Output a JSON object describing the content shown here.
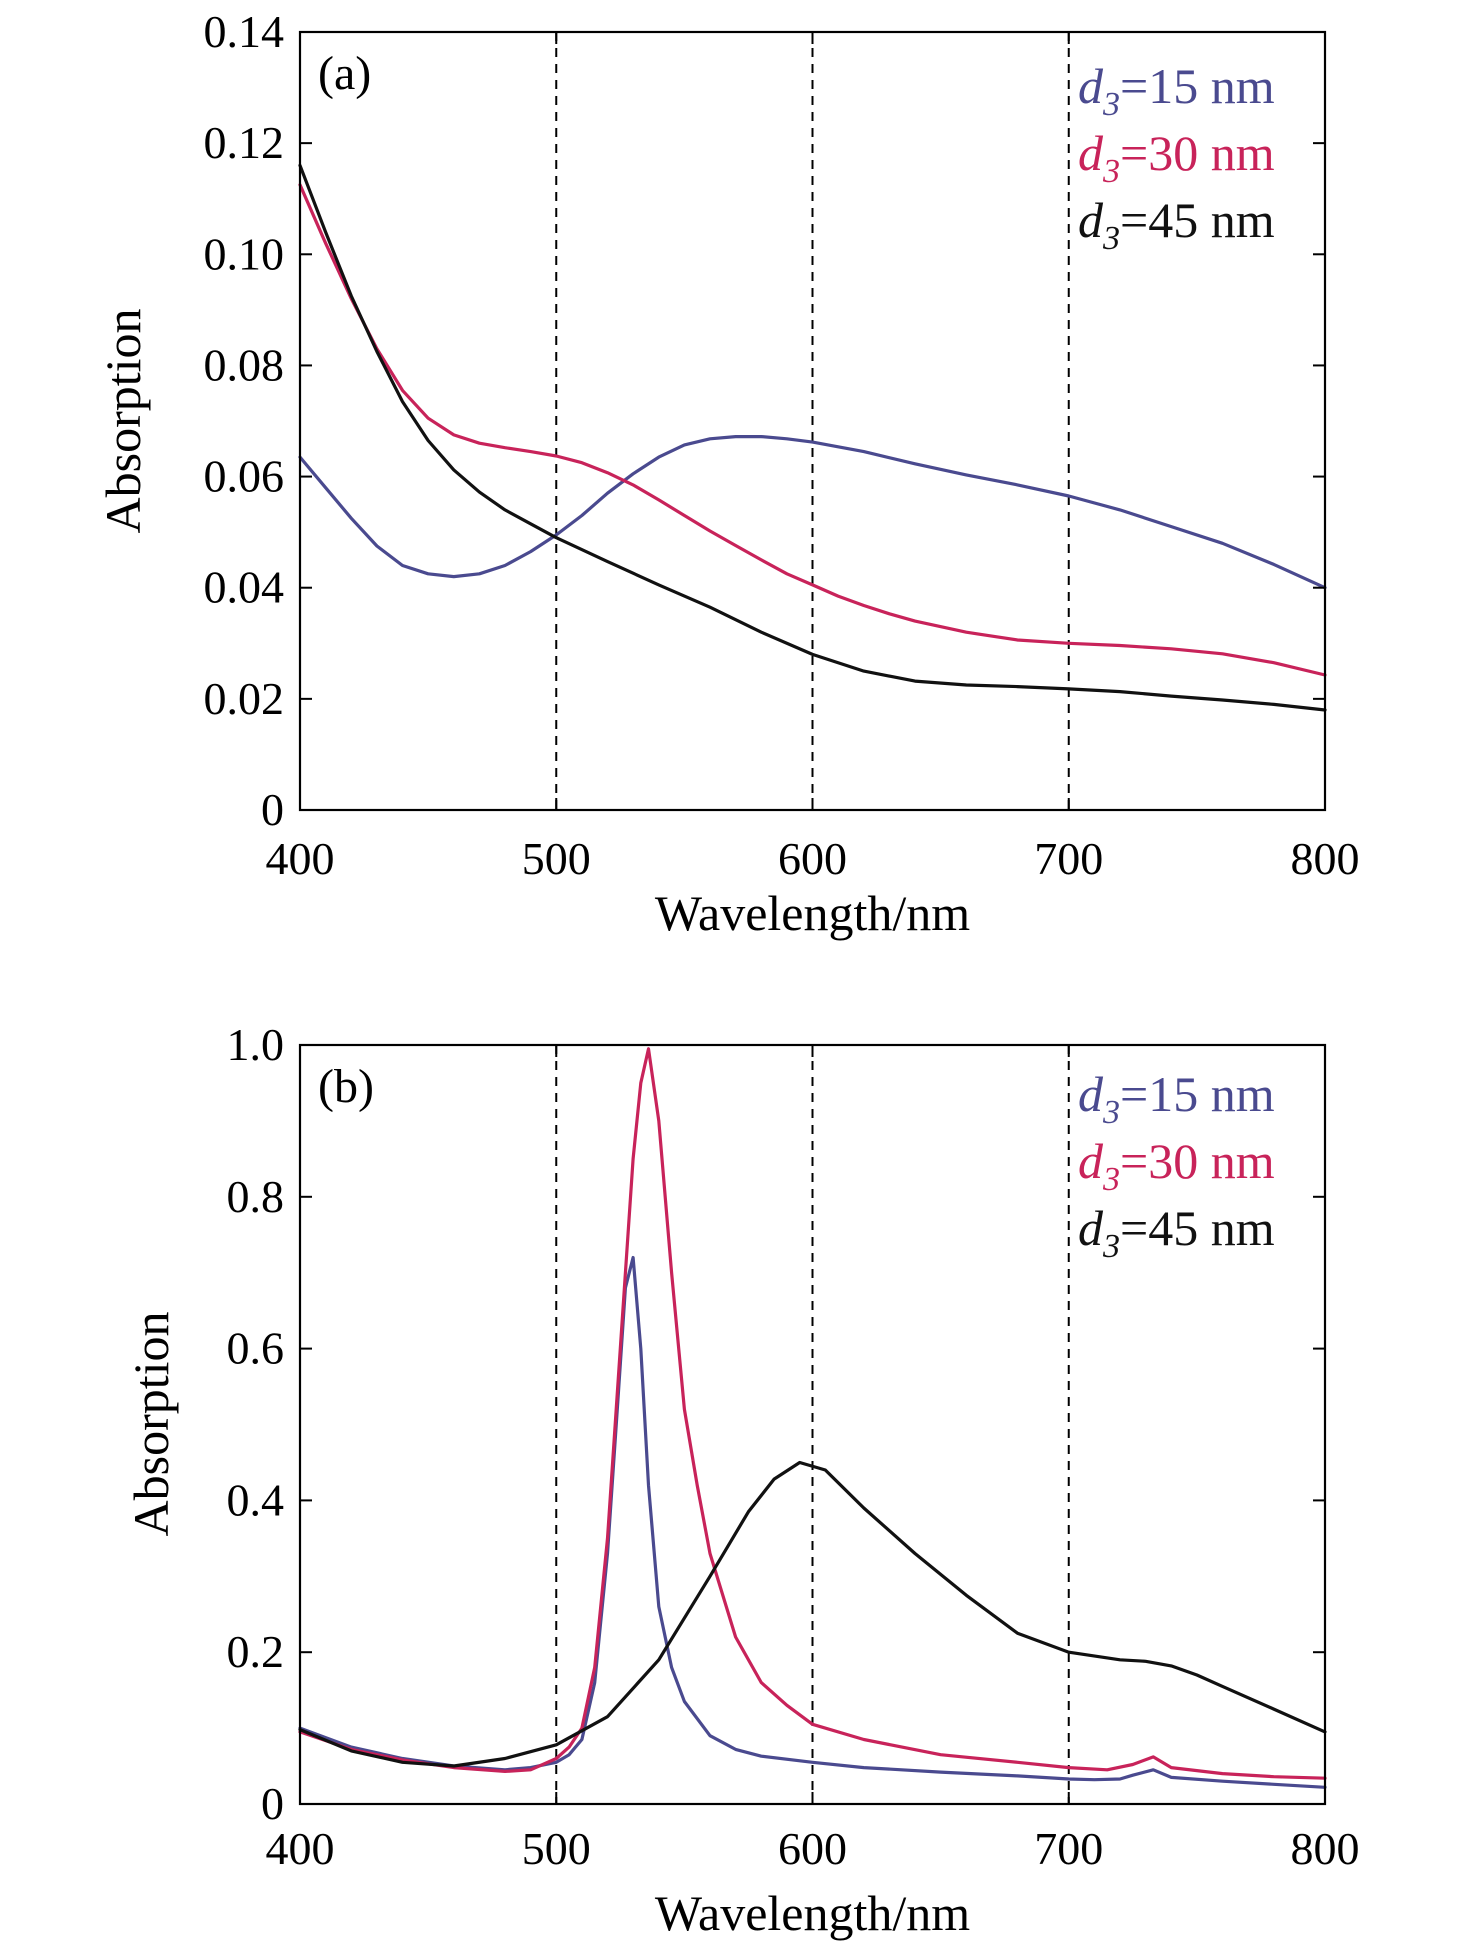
{
  "chart_data": [
    {
      "type": "line",
      "panel_label": "(a)",
      "xlabel": "Wavelength/nm",
      "ylabel": "Absorption",
      "xlim": [
        400,
        800
      ],
      "ylim": [
        0,
        0.14
      ],
      "xticks": [
        400,
        500,
        600,
        700,
        800
      ],
      "xtick_labels": [
        "400",
        "500",
        "600",
        "700",
        "800"
      ],
      "yticks": [
        0,
        0.02,
        0.04,
        0.06,
        0.08,
        0.1,
        0.12,
        0.14
      ],
      "ytick_labels": [
        "0",
        "0.02",
        "0.04",
        "0.06",
        "0.08",
        "0.10",
        "0.12",
        "0.14"
      ],
      "vlines": [
        500,
        600,
        700
      ],
      "grid": false,
      "legend_position": "top-right",
      "series": [
        {
          "name": "d3=15 nm",
          "legend_symbol": "d",
          "legend_sub": "3",
          "legend_text": "=15 nm",
          "color": "#4a4a8f",
          "x": [
            400,
            410,
            420,
            430,
            440,
            450,
            460,
            470,
            480,
            490,
            500,
            510,
            520,
            530,
            540,
            550,
            560,
            570,
            580,
            590,
            600,
            620,
            640,
            660,
            680,
            700,
            720,
            740,
            760,
            780,
            800
          ],
          "y": [
            0.0635,
            0.058,
            0.0525,
            0.0475,
            0.044,
            0.0425,
            0.042,
            0.0425,
            0.044,
            0.0465,
            0.0495,
            0.053,
            0.057,
            0.0605,
            0.0635,
            0.0657,
            0.0668,
            0.0672,
            0.0672,
            0.0668,
            0.0662,
            0.0645,
            0.0623,
            0.0603,
            0.0585,
            0.0565,
            0.054,
            0.051,
            0.048,
            0.0442,
            0.04
          ]
        },
        {
          "name": "d3=30 nm",
          "legend_symbol": "d",
          "legend_sub": "3",
          "legend_text": "=30 nm",
          "color": "#c8235a",
          "x": [
            400,
            410,
            420,
            430,
            440,
            450,
            460,
            470,
            480,
            490,
            500,
            510,
            520,
            530,
            540,
            550,
            560,
            570,
            580,
            590,
            600,
            610,
            620,
            630,
            640,
            660,
            680,
            700,
            720,
            740,
            760,
            780,
            800
          ],
          "y": [
            0.1125,
            0.102,
            0.092,
            0.083,
            0.0755,
            0.0705,
            0.0675,
            0.066,
            0.0652,
            0.0645,
            0.0637,
            0.0625,
            0.0607,
            0.0585,
            0.0558,
            0.053,
            0.0502,
            0.0476,
            0.045,
            0.0425,
            0.0405,
            0.0385,
            0.0368,
            0.0353,
            0.034,
            0.032,
            0.0306,
            0.03,
            0.0296,
            0.029,
            0.0281,
            0.0265,
            0.0243
          ]
        },
        {
          "name": "d3=45 nm",
          "legend_symbol": "d",
          "legend_sub": "3",
          "legend_text": "=45 nm",
          "color": "#111111",
          "x": [
            400,
            410,
            420,
            430,
            440,
            450,
            460,
            470,
            480,
            490,
            500,
            520,
            540,
            560,
            580,
            600,
            620,
            640,
            660,
            680,
            700,
            720,
            740,
            760,
            780,
            800
          ],
          "y": [
            0.116,
            0.104,
            0.0925,
            0.0825,
            0.0735,
            0.0665,
            0.0612,
            0.0572,
            0.054,
            0.0515,
            0.049,
            0.0447,
            0.0405,
            0.0365,
            0.032,
            0.028,
            0.025,
            0.0232,
            0.0225,
            0.0222,
            0.0218,
            0.0213,
            0.0205,
            0.0198,
            0.019,
            0.018
          ]
        }
      ]
    },
    {
      "type": "line",
      "panel_label": "(b)",
      "xlabel": "Wavelength/nm",
      "ylabel": "Absorption",
      "xlim": [
        400,
        800
      ],
      "ylim": [
        0,
        1.0
      ],
      "xticks": [
        400,
        500,
        600,
        700,
        800
      ],
      "xtick_labels": [
        "400",
        "500",
        "600",
        "700",
        "800"
      ],
      "yticks": [
        0,
        0.2,
        0.4,
        0.6,
        0.8,
        1.0
      ],
      "ytick_labels": [
        "0",
        "0.2",
        "0.4",
        "0.6",
        "0.8",
        "1.0"
      ],
      "vlines": [
        500,
        600,
        700
      ],
      "grid": false,
      "legend_position": "top-right",
      "series": [
        {
          "name": "d3=15 nm",
          "legend_symbol": "d",
          "legend_sub": "3",
          "legend_text": "=15 nm",
          "color": "#4a4a8f",
          "x": [
            400,
            420,
            440,
            460,
            480,
            490,
            500,
            505,
            510,
            515,
            520,
            524,
            527,
            530,
            533,
            536,
            540,
            545,
            550,
            560,
            570,
            580,
            600,
            620,
            650,
            680,
            700,
            710,
            720,
            725,
            733,
            740,
            760,
            780,
            800
          ],
          "y": [
            0.1,
            0.075,
            0.06,
            0.05,
            0.045,
            0.048,
            0.055,
            0.065,
            0.085,
            0.16,
            0.33,
            0.53,
            0.68,
            0.72,
            0.6,
            0.42,
            0.26,
            0.18,
            0.135,
            0.09,
            0.072,
            0.063,
            0.055,
            0.048,
            0.042,
            0.037,
            0.033,
            0.032,
            0.033,
            0.038,
            0.045,
            0.035,
            0.03,
            0.026,
            0.022
          ]
        },
        {
          "name": "d3=30 nm",
          "legend_symbol": "d",
          "legend_sub": "3",
          "legend_text": "=30 nm",
          "color": "#c8235a",
          "x": [
            400,
            420,
            440,
            460,
            480,
            490,
            500,
            505,
            510,
            515,
            520,
            525,
            530,
            533,
            536,
            540,
            545,
            550,
            555,
            560,
            570,
            580,
            590,
            600,
            620,
            650,
            680,
            700,
            715,
            725,
            733,
            740,
            760,
            780,
            800
          ],
          "y": [
            0.095,
            0.072,
            0.058,
            0.048,
            0.043,
            0.045,
            0.06,
            0.075,
            0.1,
            0.18,
            0.35,
            0.6,
            0.85,
            0.95,
            0.995,
            0.9,
            0.7,
            0.52,
            0.42,
            0.33,
            0.22,
            0.16,
            0.13,
            0.105,
            0.085,
            0.065,
            0.055,
            0.048,
            0.045,
            0.052,
            0.062,
            0.048,
            0.04,
            0.036,
            0.034
          ]
        },
        {
          "name": "d3=45 nm",
          "legend_symbol": "d",
          "legend_sub": "3",
          "legend_text": "=45 nm",
          "color": "#111111",
          "x": [
            400,
            420,
            440,
            460,
            480,
            500,
            520,
            540,
            560,
            575,
            585,
            595,
            605,
            620,
            640,
            660,
            680,
            700,
            720,
            730,
            740,
            750,
            760,
            780,
            800
          ],
          "y": [
            0.098,
            0.07,
            0.055,
            0.05,
            0.06,
            0.078,
            0.115,
            0.19,
            0.3,
            0.385,
            0.428,
            0.45,
            0.44,
            0.39,
            0.33,
            0.275,
            0.225,
            0.2,
            0.19,
            0.188,
            0.182,
            0.17,
            0.155,
            0.125,
            0.095
          ]
        }
      ]
    }
  ]
}
